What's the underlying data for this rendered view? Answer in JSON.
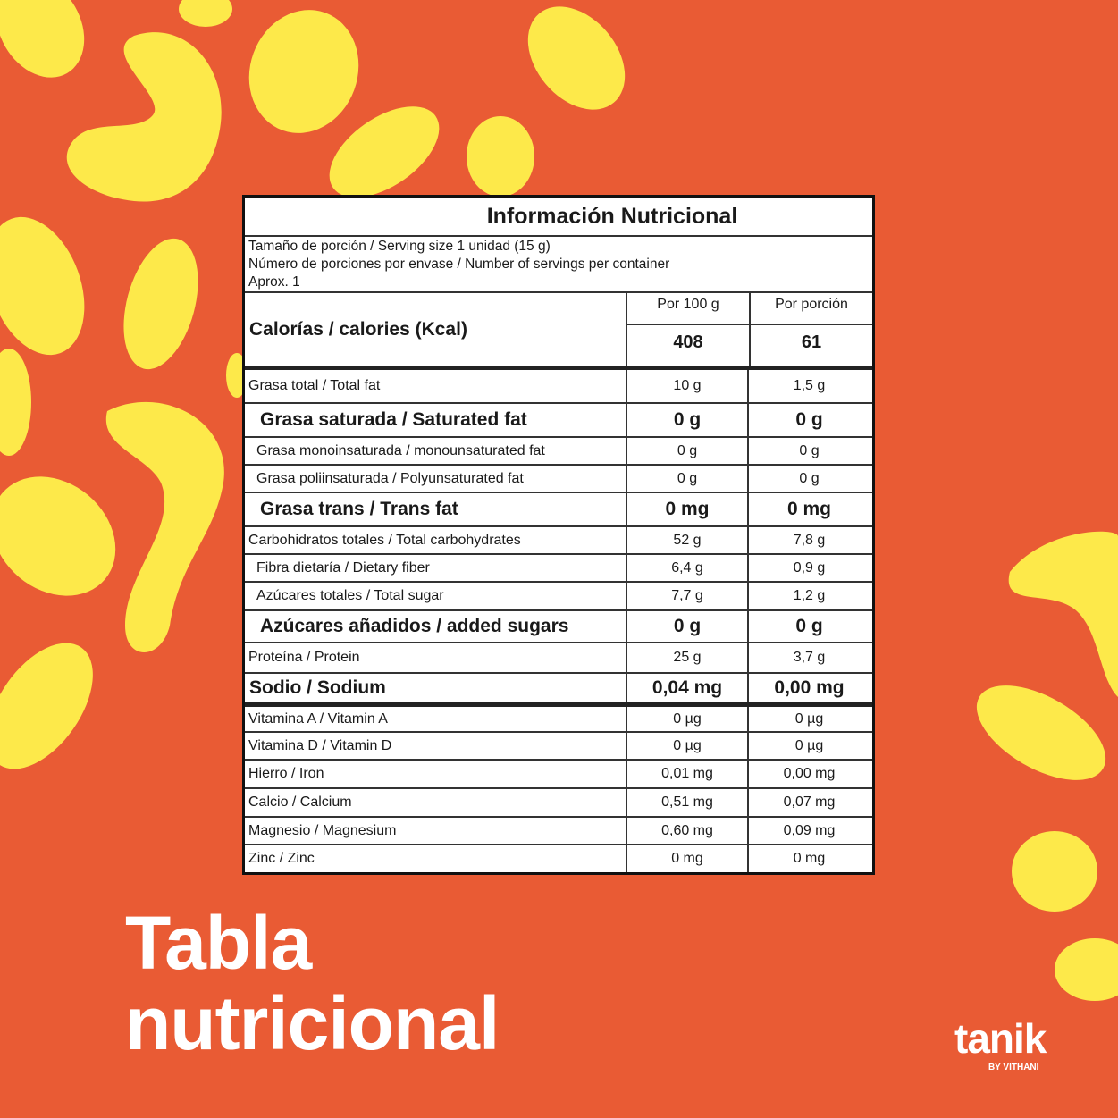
{
  "colors": {
    "background": "#E95B34",
    "blob": "#FDE94A",
    "table_border": "#111111"
  },
  "table": {
    "title": "Información Nutricional",
    "serving_lines": [
      "Tamaño de porción / Serving size 1 unidad (15 g)",
      "Número de porciones por envase / Number of servings per container",
      "Aprox. 1"
    ],
    "columns": [
      "Por 100 g",
      "Por porción"
    ],
    "calories": {
      "label": "Calorías / calories (Kcal)",
      "per_100g": "408",
      "per_serving": "61"
    },
    "rows": [
      {
        "label": "Grasa total / Total fat",
        "per_100g": "10 g",
        "per_serving": "1,5 g",
        "style": "normal"
      },
      {
        "label": "Grasa saturada / Saturated fat",
        "per_100g": "0 g",
        "per_serving": "0 g",
        "style": "bold"
      },
      {
        "label": "Grasa monoinsaturada / monounsaturated fat",
        "per_100g": "0 g",
        "per_serving": "0 g",
        "style": "indent"
      },
      {
        "label": "Grasa poliinsaturada / Polyunsaturated fat",
        "per_100g": "0 g",
        "per_serving": "0 g",
        "style": "indent"
      },
      {
        "label": "Grasa trans / Trans fat",
        "per_100g": "0 mg",
        "per_serving": "0 mg",
        "style": "bold"
      },
      {
        "label": "Carbohidratos totales / Total carbohydrates",
        "per_100g": "52 g",
        "per_serving": "7,8 g",
        "style": "normal"
      },
      {
        "label": "Fibra dietaría / Dietary fiber",
        "per_100g": "6,4 g",
        "per_serving": "0,9 g",
        "style": "indent"
      },
      {
        "label": "Azúcares totales / Total sugar",
        "per_100g": "7,7 g",
        "per_serving": "1,2 g",
        "style": "indent"
      },
      {
        "label": "Azúcares añadidos / added sugars",
        "per_100g": "0 g",
        "per_serving": "0 g",
        "style": "bold"
      },
      {
        "label": "Proteína / Protein",
        "per_100g": "25 g",
        "per_serving": "3,7 g",
        "style": "normal"
      },
      {
        "label": "Sodio / Sodium",
        "per_100g": "0,04 mg",
        "per_serving": "0,00 mg",
        "style": "strong"
      },
      {
        "label": "Vitamina A / Vitamin A",
        "per_100g": "0 µg",
        "per_serving": "0 µg",
        "style": "normal"
      },
      {
        "label": "Vitamina D / Vitamin D",
        "per_100g": "0 µg",
        "per_serving": "0 µg",
        "style": "normal"
      },
      {
        "label": "Hierro / Iron",
        "per_100g": "0,01 mg",
        "per_serving": "0,00 mg",
        "style": "normal"
      },
      {
        "label": "Calcio / Calcium",
        "per_100g": "0,51 mg",
        "per_serving": "0,07 mg",
        "style": "normal"
      },
      {
        "label": "Magnesio / Magnesium",
        "per_100g": "0,60 mg",
        "per_serving": "0,09 mg",
        "style": "normal"
      },
      {
        "label": "Zinc / Zinc",
        "per_100g": "0 mg",
        "per_serving": "0 mg",
        "style": "normal"
      }
    ]
  },
  "headline": [
    "Tabla",
    "nutricional"
  ],
  "logo": {
    "wordmark": "tanik",
    "tagline": "BY VITHANI"
  }
}
